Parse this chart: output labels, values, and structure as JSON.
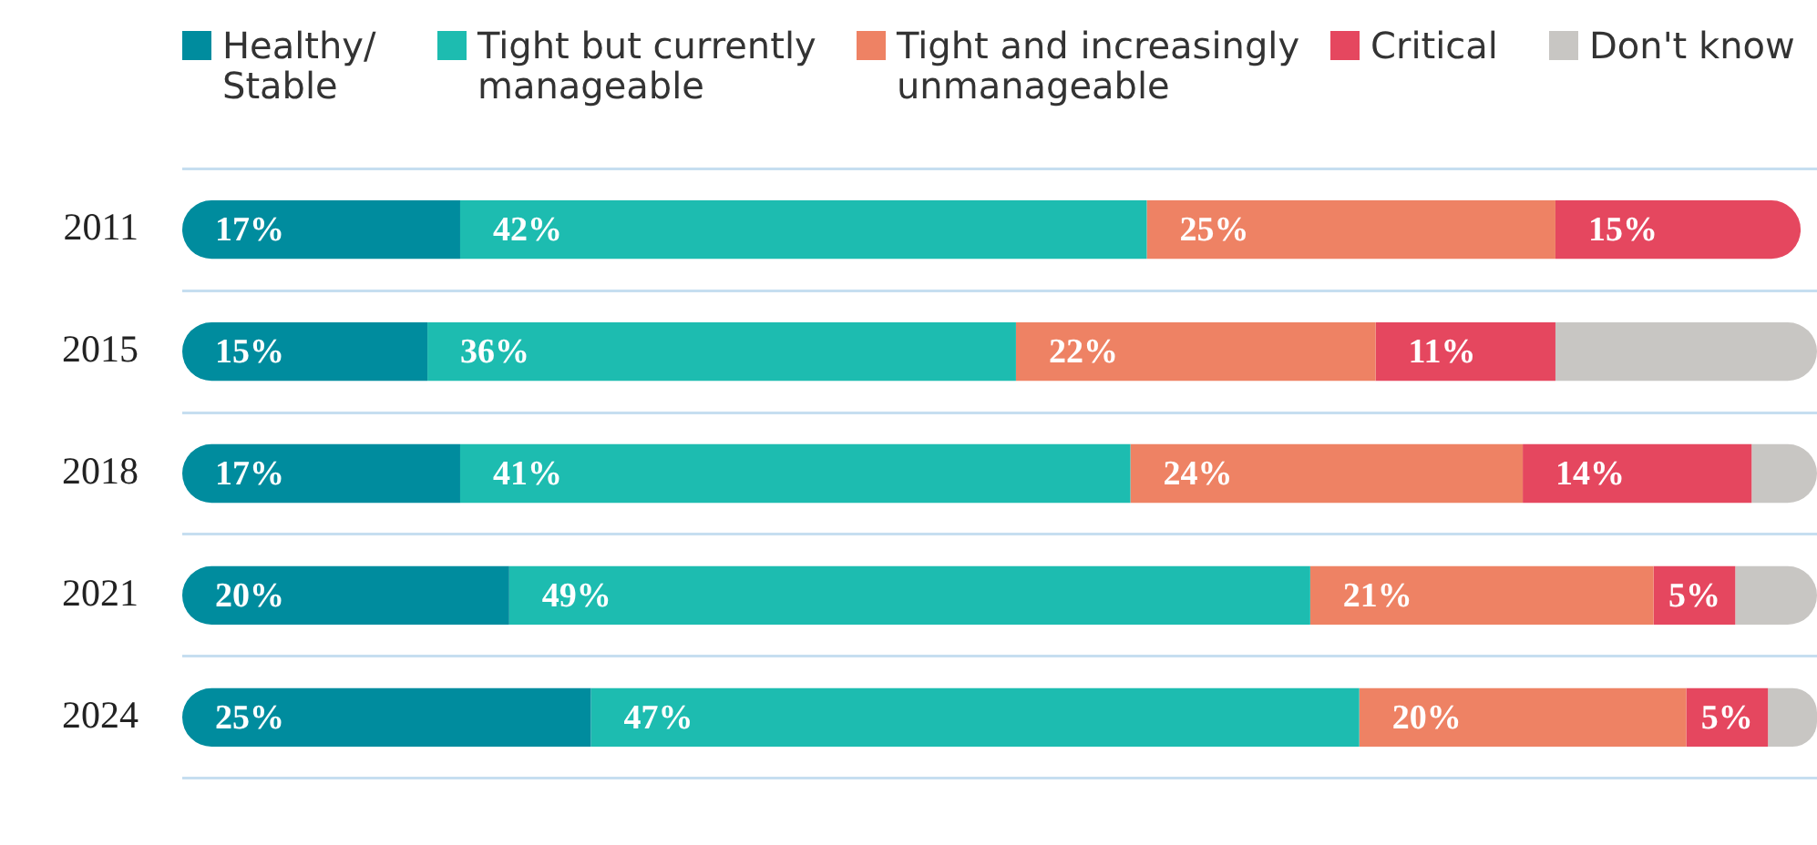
{
  "chart_data": {
    "type": "bar",
    "orientation": "horizontal",
    "stacked": true,
    "categories": [
      "2011",
      "2015",
      "2018",
      "2021",
      "2024"
    ],
    "series": [
      {
        "name": "Healthy/ Stable",
        "color": "#008c9e",
        "values": [
          17,
          15,
          17,
          20,
          25
        ],
        "value_labels": [
          "17%",
          "15%",
          "17%",
          "20%",
          "25%"
        ]
      },
      {
        "name": "Tight but currently manageable",
        "color": "#1dbcb0",
        "values": [
          42,
          36,
          41,
          49,
          47
        ],
        "value_labels": [
          "42%",
          "36%",
          "41%",
          "49%",
          "47%"
        ]
      },
      {
        "name": "Tight and increasingly unmanageable",
        "color": "#ee8264",
        "values": [
          25,
          22,
          24,
          21,
          20
        ],
        "value_labels": [
          "25%",
          "22%",
          "24%",
          "21%",
          "20%"
        ]
      },
      {
        "name": "Critical",
        "color": "#e5475f",
        "values": [
          15,
          11,
          14,
          5,
          5
        ],
        "value_labels": [
          "15%",
          "11%",
          "14%",
          "5%",
          "5%"
        ]
      },
      {
        "name": "Don't know",
        "color": "#c8c6c3",
        "values": [
          null,
          16,
          4,
          5,
          3
        ]
      }
    ],
    "xlim": [
      0,
      100
    ],
    "grid": "y",
    "legend": "top",
    "tick_labels": "y"
  }
}
